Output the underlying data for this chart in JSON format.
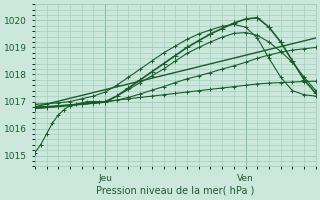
{
  "bg_color": "#cce8dc",
  "grid_color": "#99ccbb",
  "line_color": "#1a5c2a",
  "xlabel": "Pression niveau de la mer( hPa )",
  "yticks": [
    1015,
    1016,
    1017,
    1018,
    1019,
    1020
  ],
  "ylim": [
    1014.6,
    1020.6
  ],
  "xlim": [
    0,
    48
  ],
  "xtick_positions": [
    12,
    36
  ],
  "xtick_labels": [
    "Jeu",
    "Ven"
  ],
  "vlines": [
    12,
    36
  ],
  "series": [
    {
      "x": [
        0,
        1,
        2,
        3,
        4,
        5,
        6,
        7,
        8,
        9,
        10,
        11,
        12,
        14,
        16,
        18,
        20,
        22,
        24,
        26,
        28,
        30,
        32,
        34,
        36,
        38,
        40,
        42,
        44,
        46,
        48
      ],
      "y": [
        1015.1,
        1015.4,
        1015.8,
        1016.2,
        1016.5,
        1016.7,
        1016.85,
        1016.9,
        1016.95,
        1017.0,
        1017.0,
        1017.0,
        1017.0,
        1017.05,
        1017.1,
        1017.15,
        1017.2,
        1017.25,
        1017.3,
        1017.35,
        1017.4,
        1017.45,
        1017.5,
        1017.55,
        1017.6,
        1017.65,
        1017.68,
        1017.7,
        1017.72,
        1017.74,
        1017.75
      ],
      "marker": "+",
      "lw": 0.8,
      "ms": 3
    },
    {
      "x": [
        0,
        2,
        4,
        6,
        8,
        10,
        12,
        14,
        16,
        18,
        20,
        22,
        24,
        26,
        28,
        30,
        32,
        34,
        36,
        38,
        40,
        42,
        44,
        46,
        48
      ],
      "y": [
        1016.75,
        1016.78,
        1016.82,
        1016.86,
        1016.9,
        1016.94,
        1016.98,
        1017.05,
        1017.15,
        1017.28,
        1017.42,
        1017.55,
        1017.7,
        1017.84,
        1017.95,
        1018.07,
        1018.2,
        1018.32,
        1018.45,
        1018.6,
        1018.72,
        1018.82,
        1018.9,
        1018.95,
        1019.0
      ],
      "marker": "+",
      "lw": 0.8,
      "ms": 3
    },
    {
      "x": [
        0,
        48
      ],
      "y": [
        1016.8,
        1019.35
      ],
      "marker": "None",
      "lw": 1.0,
      "ms": 0
    },
    {
      "x": [
        0,
        2,
        4,
        6,
        8,
        10,
        12,
        14,
        16,
        18,
        20,
        22,
        24,
        26,
        28,
        30,
        32,
        34,
        36,
        38,
        40,
        42,
        44,
        46,
        48
      ],
      "y": [
        1016.8,
        1016.82,
        1016.85,
        1016.88,
        1016.92,
        1016.96,
        1017.0,
        1017.2,
        1017.45,
        1017.7,
        1017.95,
        1018.2,
        1018.5,
        1018.78,
        1019.0,
        1019.2,
        1019.38,
        1019.52,
        1019.55,
        1019.45,
        1019.2,
        1018.85,
        1018.45,
        1017.9,
        1017.4
      ],
      "marker": "+",
      "lw": 0.8,
      "ms": 3
    },
    {
      "x": [
        0,
        2,
        4,
        6,
        8,
        10,
        12,
        14,
        16,
        18,
        20,
        22,
        24,
        26,
        28,
        30,
        32,
        34,
        36,
        38,
        40,
        42,
        44,
        46,
        48
      ],
      "y": [
        1016.75,
        1016.78,
        1016.82,
        1016.86,
        1016.9,
        1016.94,
        1016.98,
        1017.2,
        1017.5,
        1017.8,
        1018.1,
        1018.4,
        1018.7,
        1019.0,
        1019.25,
        1019.5,
        1019.7,
        1019.9,
        1020.05,
        1020.1,
        1019.75,
        1019.2,
        1018.5,
        1017.8,
        1017.3
      ],
      "marker": "+",
      "lw": 1.2,
      "ms": 4
    },
    {
      "x": [
        0,
        2,
        4,
        6,
        8,
        10,
        12,
        14,
        16,
        18,
        20,
        22,
        24,
        26,
        28,
        30,
        32,
        34,
        36,
        38,
        40,
        42,
        44,
        46,
        48
      ],
      "y": [
        1016.9,
        1016.92,
        1016.95,
        1017.0,
        1017.1,
        1017.2,
        1017.35,
        1017.6,
        1017.9,
        1018.2,
        1018.5,
        1018.8,
        1019.05,
        1019.3,
        1019.5,
        1019.65,
        1019.78,
        1019.85,
        1019.75,
        1019.35,
        1018.6,
        1017.9,
        1017.4,
        1017.25,
        1017.2
      ],
      "marker": "+",
      "lw": 0.8,
      "ms": 3
    }
  ]
}
